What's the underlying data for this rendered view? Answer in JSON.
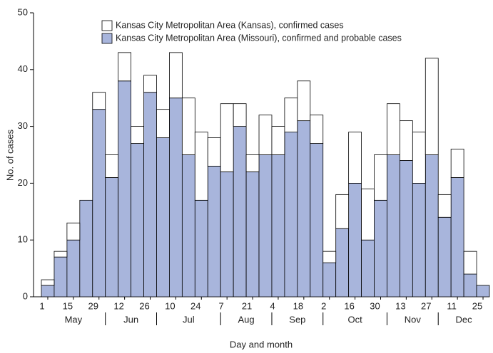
{
  "chart_data": {
    "type": "stacked-bar",
    "x_label": "Day and month",
    "y_label": "No. of cases",
    "categories": [
      "1",
      null,
      "15",
      null,
      "29",
      null,
      "12",
      null,
      "26",
      null,
      "10",
      null,
      "24",
      null,
      "7",
      null,
      "21",
      null,
      "4",
      null,
      "18",
      null,
      "2",
      null,
      "16",
      null,
      "30",
      null,
      "13",
      null,
      "27",
      null,
      "11",
      null,
      "25"
    ],
    "months": [
      "May",
      "Jun",
      "Jul",
      "Aug",
      "Sep",
      "Oct",
      "Nov",
      "Dec"
    ],
    "series": [
      {
        "name": "Kansas City Metropolitan Area (Missouri), confirmed and probable cases",
        "color": "#a8b5dc",
        "values": [
          2,
          7,
          10,
          17,
          33,
          21,
          38,
          27,
          36,
          28,
          35,
          25,
          17,
          23,
          22,
          30,
          22,
          25,
          25,
          29,
          31,
          27,
          6,
          12,
          20,
          10,
          17,
          25,
          24,
          20,
          25,
          14,
          21,
          4,
          2
        ]
      },
      {
        "name": "Kansas City Metropolitan Area (Kansas), confirmed cases",
        "color": "#ffffff",
        "values": [
          1,
          1,
          3,
          0,
          3,
          4,
          5,
          3,
          3,
          5,
          8,
          10,
          12,
          5,
          12,
          4,
          3,
          7,
          5,
          6,
          7,
          5,
          2,
          6,
          9,
          9,
          8,
          9,
          7,
          9,
          17,
          4,
          5,
          4,
          0
        ]
      }
    ],
    "ylim": [
      0,
      50
    ],
    "yticks": [
      0,
      10,
      20,
      30,
      40,
      50
    ]
  }
}
